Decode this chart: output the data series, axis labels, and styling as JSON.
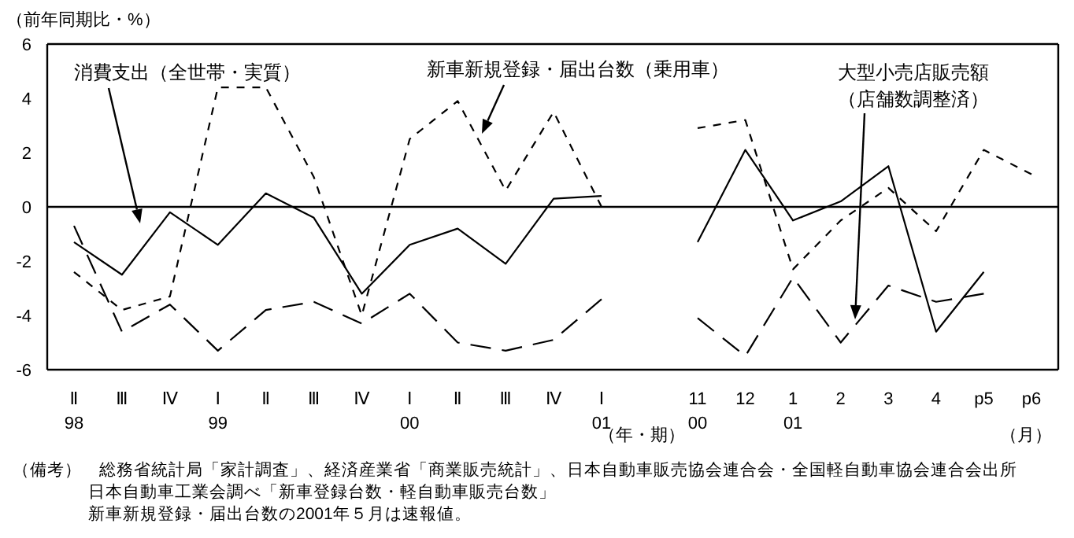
{
  "chart_data": [
    {
      "type": "line",
      "ylabel": "（前年同期比・%）",
      "xlabel": "（年・期）",
      "categories": [
        "Ⅱ\n98",
        "Ⅲ",
        "Ⅳ",
        "Ⅰ\n99",
        "Ⅱ",
        "Ⅲ",
        "Ⅳ",
        "Ⅰ\n00",
        "Ⅱ",
        "Ⅲ",
        "Ⅳ",
        "Ⅰ\n01"
      ],
      "ylim": [
        -6,
        6
      ],
      "yticks": [
        -6,
        -4,
        -2,
        0,
        2,
        4,
        6
      ],
      "grid": false,
      "ref_lines": [
        {
          "axis": "y",
          "value": 0,
          "color": "#000000",
          "line_style": "solid"
        }
      ],
      "series": [
        {
          "name": "消費支出（全世帯・実質）",
          "color": "#000000",
          "line_style": "solid",
          "values": [
            -1.3,
            -2.5,
            -0.2,
            -1.4,
            0.5,
            -0.4,
            -3.2,
            -1.4,
            -0.8,
            -2.1,
            0.3,
            0.4
          ]
        },
        {
          "name": "新車新規登録・届出台数（乗用車）",
          "color": "#000000",
          "line_style": "dashed",
          "values": [
            -2.4,
            -3.8,
            -3.3,
            4.4,
            4.4,
            1.1,
            -4.0,
            2.5,
            3.9,
            0.6,
            3.5,
            0.0
          ]
        },
        {
          "color": "#000000",
          "line_style": "dashed",
          "values": [
            -0.7,
            -4.6,
            -3.6,
            -5.3,
            -3.8,
            -3.5,
            -4.3,
            -3.2,
            -5.0,
            -5.3,
            -4.9,
            -3.4
          ]
        }
      ],
      "annotations": [
        "（備考）　総務省統計局「家計調査」、経済産業省「商業販売統計」、日本自動車販売協会連合会・全国軽自動車協会連合会出所",
        "日本自動車工業会調べ「新車登録台数・軽自動車販売台数」",
        "新車新規登録・届出台数の2001年５月は速報値。"
      ]
    },
    {
      "type": "line",
      "xlabel": "（月）",
      "categories": [
        "11\n00",
        "12",
        "1\n01",
        "2",
        "3",
        "4",
        "p5",
        "p6"
      ],
      "ylim": [
        -6,
        6
      ],
      "tick_labels": "x",
      "grid": false,
      "ref_lines": [
        {
          "axis": "y",
          "value": 0,
          "color": "#000000",
          "line_style": "solid"
        }
      ],
      "series": [
        {
          "color": "#000000",
          "line_style": "solid",
          "values": [
            -1.3,
            2.1,
            -0.5,
            0.2,
            1.5,
            -4.6,
            -2.4,
            null
          ]
        },
        {
          "color": "#000000",
          "line_style": "dashed",
          "values": [
            2.9,
            3.2,
            -2.3,
            -0.5,
            0.7,
            -0.9,
            2.1,
            1.2
          ]
        },
        {
          "name": "大型小売店販売額（店舗数調整済）",
          "color": "#000000",
          "line_style": "dashed",
          "values": [
            -4.1,
            -5.5,
            -2.6,
            -5.0,
            -2.9,
            -3.5,
            -3.2,
            null
          ]
        }
      ]
    }
  ]
}
